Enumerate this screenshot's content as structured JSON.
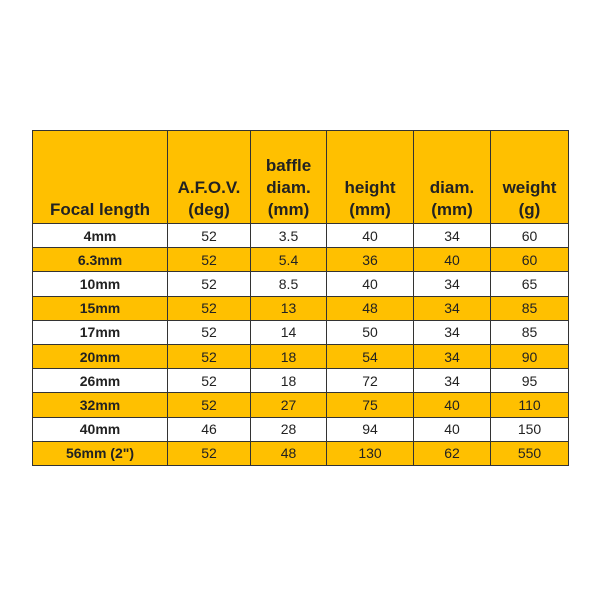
{
  "table": {
    "headers": [
      [
        "",
        "",
        "Focal length"
      ],
      [
        "",
        "A.F.O.V.",
        "(deg)"
      ],
      [
        "baffle",
        "diam.",
        "(mm)"
      ],
      [
        "",
        "height",
        "(mm)"
      ],
      [
        "",
        "diam.",
        "(mm)"
      ],
      [
        "",
        "weight",
        "(g)"
      ]
    ],
    "rows": [
      [
        "4mm",
        "52",
        "3.5",
        "40",
        "34",
        "60"
      ],
      [
        "6.3mm",
        "52",
        "5.4",
        "36",
        "40",
        "60"
      ],
      [
        "10mm",
        "52",
        "8.5",
        "40",
        "34",
        "65"
      ],
      [
        "15mm",
        "52",
        "13",
        "48",
        "34",
        "85"
      ],
      [
        "17mm",
        "52",
        "14",
        "50",
        "34",
        "85"
      ],
      [
        "20mm",
        "52",
        "18",
        "54",
        "34",
        "90"
      ],
      [
        "26mm",
        "52",
        "18",
        "72",
        "34",
        "95"
      ],
      [
        "32mm",
        "52",
        "27",
        "75",
        "40",
        "110"
      ],
      [
        "40mm",
        "46",
        "28",
        "94",
        "40",
        "150"
      ],
      [
        "56mm (2\")",
        "52",
        "48",
        "130",
        "62",
        "550"
      ]
    ]
  },
  "colors": {
    "accent": "#FFC000",
    "plain": "#FFFFFF",
    "border": "#333333"
  }
}
